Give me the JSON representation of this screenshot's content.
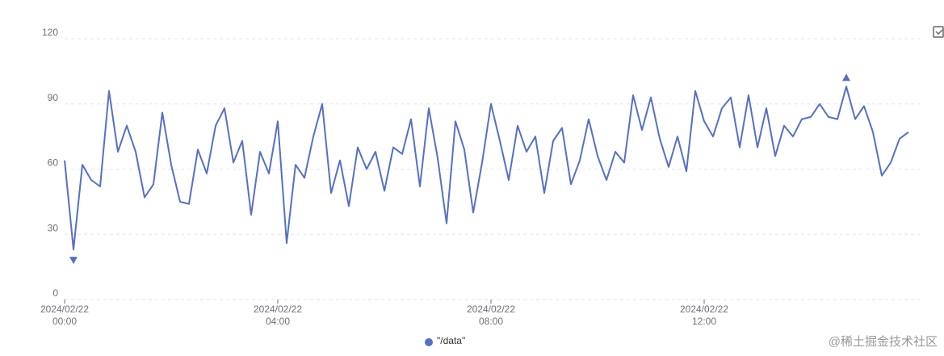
{
  "chart_data": {
    "type": "line",
    "x": [
      "00:00",
      "00:10",
      "00:20",
      "00:30",
      "00:40",
      "00:50",
      "01:00",
      "01:10",
      "01:20",
      "01:30",
      "01:40",
      "01:50",
      "02:00",
      "02:10",
      "02:20",
      "02:30",
      "02:40",
      "02:50",
      "03:00",
      "03:10",
      "03:20",
      "03:30",
      "03:40",
      "03:50",
      "04:00",
      "04:10",
      "04:20",
      "04:30",
      "04:40",
      "04:50",
      "05:00",
      "05:10",
      "05:20",
      "05:30",
      "05:40",
      "05:50",
      "06:00",
      "06:10",
      "06:20",
      "06:30",
      "06:40",
      "06:50",
      "07:00",
      "07:10",
      "07:20",
      "07:30",
      "07:40",
      "07:50",
      "08:00",
      "08:10",
      "08:20",
      "08:30",
      "08:40",
      "08:50",
      "09:00",
      "09:10",
      "09:20",
      "09:30",
      "09:40",
      "09:50",
      "10:00",
      "10:10",
      "10:20",
      "10:30",
      "10:40",
      "10:50",
      "11:00",
      "11:10",
      "11:20",
      "11:30",
      "11:40",
      "11:50",
      "12:00",
      "12:10",
      "12:20",
      "12:30",
      "12:40",
      "12:50",
      "13:00",
      "13:10",
      "13:20",
      "13:30",
      "13:40",
      "13:50",
      "14:00",
      "14:10",
      "14:20",
      "14:30",
      "14:40",
      "14:50",
      "15:00",
      "15:10",
      "15:20",
      "15:30",
      "15:40",
      "15:50"
    ],
    "series": [
      {
        "name": "\"/data\"",
        "color": "#5470c6",
        "values": [
          64,
          23,
          62,
          55,
          52,
          96,
          68,
          80,
          68,
          47,
          53,
          86,
          62,
          45,
          44,
          69,
          58,
          80,
          88,
          63,
          73,
          39,
          68,
          58,
          82,
          26,
          62,
          56,
          75,
          90,
          49,
          64,
          43,
          70,
          60,
          68,
          50,
          70,
          67,
          83,
          52,
          88,
          65,
          35,
          82,
          69,
          40,
          63,
          90,
          73,
          55,
          80,
          68,
          75,
          49,
          73,
          79,
          53,
          64,
          83,
          66,
          55,
          68,
          63,
          94,
          78,
          93,
          74,
          61,
          75,
          59,
          96,
          82,
          75,
          88,
          93,
          70,
          94,
          70,
          88,
          66,
          80,
          75,
          83,
          84,
          90,
          84,
          83,
          98,
          83,
          89,
          77,
          57,
          63,
          74,
          77
        ]
      }
    ],
    "ylim": [
      0,
      120
    ],
    "yticks": [
      0,
      30,
      60,
      90,
      120
    ],
    "grid": true,
    "xticks": [
      {
        "value": "00:00",
        "label": "2024/02/22 00:00"
      },
      {
        "value": "04:00",
        "label": "2024/02/22 04:00"
      },
      {
        "value": "08:00",
        "label": "2024/02/22 08:00"
      },
      {
        "value": "12:00",
        "label": "2024/02/22 12:00"
      }
    ],
    "mark_points": [
      "max",
      "min"
    ],
    "legend": "bottom",
    "watermark": "@稀土掘金技术社区"
  }
}
